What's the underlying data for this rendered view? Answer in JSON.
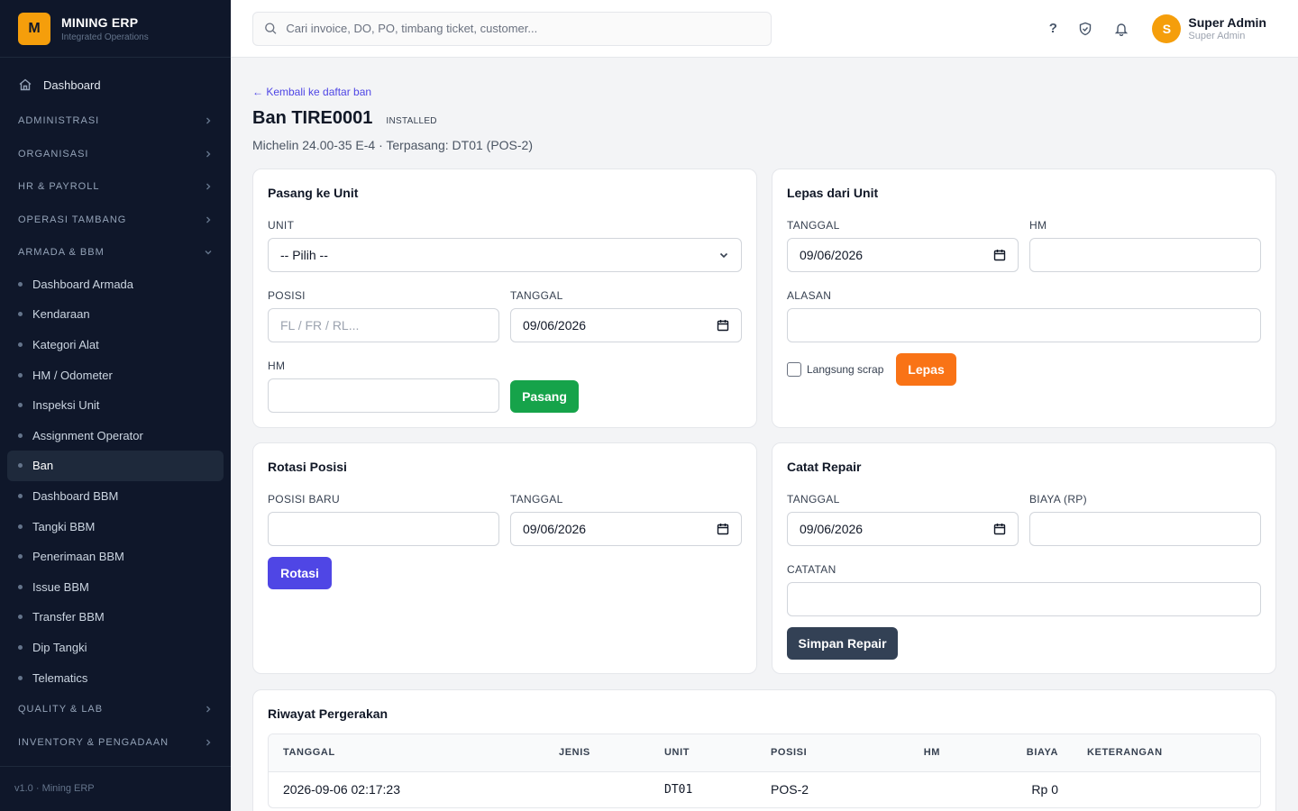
{
  "brand": {
    "logo": "M",
    "name": "MINING ERP",
    "tagline": "Integrated Operations"
  },
  "sidebar": {
    "dashboard": "Dashboard",
    "groups_top": [
      "ADMINISTRASI",
      "ORGANISASI",
      "HR & PAYROLL",
      "OPERASI TAMBANG"
    ],
    "open_group": "ARMADA & BBM",
    "items": [
      "Dashboard Armada",
      "Kendaraan",
      "Kategori Alat",
      "HM / Odometer",
      "Inspeksi Unit",
      "Assignment Operator",
      "Ban",
      "Dashboard BBM",
      "Tangki BBM",
      "Penerimaan BBM",
      "Issue BBM",
      "Transfer BBM",
      "Dip Tangki",
      "Telematics"
    ],
    "active_item": "Ban",
    "groups_bottom": [
      "QUALITY & LAB",
      "INVENTORY & PENGADAAN"
    ],
    "footer": "v1.0 · Mining ERP"
  },
  "header": {
    "search_placeholder": "Cari invoice, DO, PO, timbang ticket, customer...",
    "help_label": "?",
    "user_initial": "S",
    "user_name": "Super Admin",
    "user_role": "Super Admin"
  },
  "page": {
    "back_link": "← Kembali ke daftar ban",
    "title": "Ban TIRE0001",
    "status": "INSTALLED",
    "subtitle": "Michelin 24.00-35 E-4 · Terpasang: DT01 (POS-2)"
  },
  "pasang": {
    "title": "Pasang ke Unit",
    "unit_label": "UNIT",
    "unit_value": "-- Pilih --",
    "posisi_label": "POSISI",
    "posisi_placeholder": "FL / FR / RL...",
    "tanggal_label": "TANGGAL",
    "tanggal_value": "09/06/2026",
    "hm_label": "HM",
    "button": "Pasang"
  },
  "lepas": {
    "title": "Lepas dari Unit",
    "tanggal_label": "TANGGAL",
    "tanggal_value": "09/06/2026",
    "hm_label": "HM",
    "alasan_label": "ALASAN",
    "scrap_label": "Langsung scrap",
    "button": "Lepas"
  },
  "rotasi": {
    "title": "Rotasi Posisi",
    "posisi_label": "POSISI BARU",
    "tanggal_label": "TANGGAL",
    "tanggal_value": "09/06/2026",
    "button": "Rotasi"
  },
  "repair": {
    "title": "Catat Repair",
    "tanggal_label": "TANGGAL",
    "tanggal_value": "09/06/2026",
    "biaya_label": "BIAYA (RP)",
    "catatan_label": "CATATAN",
    "button": "Simpan Repair"
  },
  "history": {
    "title": "Riwayat Pergerakan",
    "columns": {
      "tanggal": "TANGGAL",
      "jenis": "JENIS",
      "unit": "UNIT",
      "posisi": "POSISI",
      "hm": "HM",
      "biaya": "BIAYA",
      "keterangan": "KETERANGAN"
    },
    "rows": [
      {
        "tanggal": "2026-09-06 02:17:23",
        "jenis": "",
        "unit": "DT01",
        "posisi": "POS-2",
        "hm": "",
        "biaya": "Rp 0",
        "keterangan": ""
      }
    ]
  },
  "colors": {
    "sidebar_bg": "#0f172a",
    "accent": "#f59e0b",
    "green": "#16a34a",
    "orange": "#f97316",
    "indigo": "#4f46e5",
    "slate": "#334155"
  }
}
